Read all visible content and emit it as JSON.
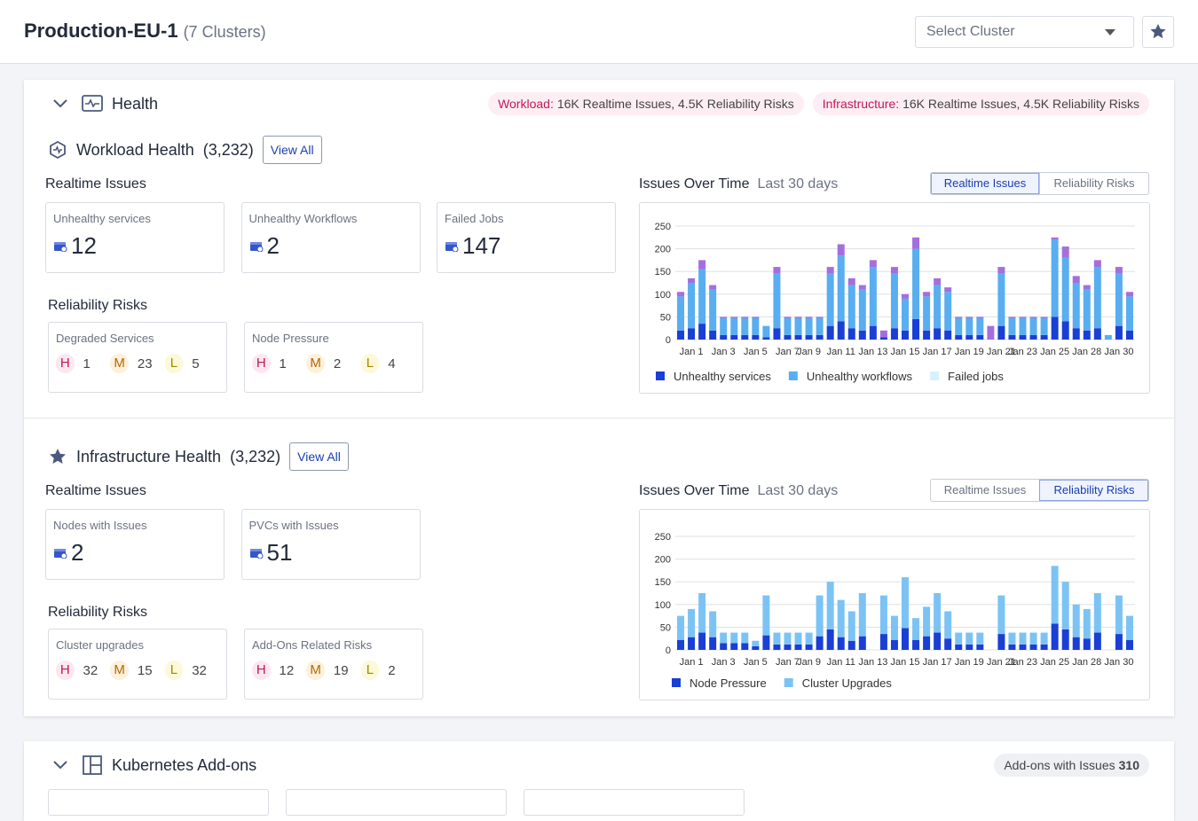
{
  "header": {
    "title": "Production-EU-1",
    "subtitle": "(7 Clusters)",
    "select_placeholder": "Select Cluster"
  },
  "health": {
    "title": "Health",
    "risk_levels": [
      "H",
      "M",
      "L"
    ],
    "badges": [
      {
        "label": "Workload:",
        "text": "16K Realtime Issues, 4.5K Reliability Risks"
      },
      {
        "label": "Infrastructure:",
        "text": "16K Realtime Issues, 4.5K Reliability Risks"
      }
    ],
    "workload": {
      "title": "Workload Health",
      "count": "(3,232)",
      "view_all": "View All",
      "realtime_title": "Realtime Issues",
      "realtime": [
        {
          "label": "Unhealthy services",
          "value": 12
        },
        {
          "label": "Unhealthy Workflows",
          "value": 2
        },
        {
          "label": "Failed Jobs",
          "value": 147
        }
      ],
      "reliability_title": "Reliability Risks",
      "risks": [
        {
          "label": "Degraded Services",
          "values": [
            1,
            23,
            5
          ]
        },
        {
          "label": "Node Pressure",
          "values": [
            1,
            2,
            4
          ]
        }
      ],
      "toggles": [
        "Realtime Issues",
        "Reliability Risks"
      ],
      "active_toggle": 0
    },
    "infrastructure": {
      "title": "Infrastructure Health",
      "count": "(3,232)",
      "view_all": "View All",
      "realtime_title": "Realtime Issues",
      "realtime": [
        {
          "label": "Nodes with Issues",
          "value": 2
        },
        {
          "label": "PVCs with Issues",
          "value": 51
        }
      ],
      "reliability_title": "Reliability Risks",
      "risks": [
        {
          "label": "Cluster upgrades",
          "values": [
            32,
            15,
            32
          ]
        },
        {
          "label": "Add-Ons Related Risks",
          "values": [
            12,
            19,
            2
          ]
        }
      ],
      "toggles": [
        "Realtime Issues",
        "Reliability Risks"
      ],
      "active_toggle": 1
    }
  },
  "addons": {
    "title": "Kubernetes Add-ons",
    "badge_label": "Add-ons with Issues",
    "badge_value": 310
  },
  "chart_data": [
    {
      "type": "bar",
      "stacked": true,
      "title": "Issues Over Time",
      "subtitle": "Last 30 days",
      "ylim": [
        0,
        250
      ],
      "yticks": [
        0,
        50,
        100,
        150,
        200,
        250
      ],
      "grid": true,
      "categories": [
        null,
        "Jan 1",
        null,
        null,
        "Jan 3",
        null,
        null,
        "Jan 5",
        null,
        null,
        "Jan 7",
        null,
        "Jan 9",
        null,
        null,
        "Jan 11",
        null,
        null,
        "Jan 13",
        null,
        null,
        "Jan 15",
        null,
        null,
        "Jan 17",
        null,
        null,
        "Jan 19",
        null,
        null,
        "Jan 21",
        null,
        "Jan 23",
        null,
        null,
        "Jan 25",
        null,
        null,
        "Jan 28",
        null,
        null,
        "Jan 30",
        null
      ],
      "series": [
        {
          "name": "Unhealthy services",
          "color": "#1a3fd6",
          "values": [
            20,
            25,
            35,
            20,
            10,
            10,
            10,
            10,
            5,
            25,
            10,
            10,
            10,
            10,
            30,
            40,
            25,
            20,
            30,
            5,
            25,
            20,
            45,
            20,
            25,
            20,
            10,
            10,
            10,
            0,
            30,
            10,
            10,
            10,
            10,
            50,
            40,
            25,
            20,
            25,
            0,
            30,
            20
          ]
        },
        {
          "name": "Unhealthy workflows",
          "color": "#58aef0",
          "values": [
            75,
            100,
            120,
            90,
            37,
            37,
            37,
            37,
            25,
            120,
            37,
            37,
            37,
            37,
            115,
            145,
            95,
            90,
            130,
            0,
            120,
            70,
            155,
            75,
            95,
            85,
            37,
            37,
            37,
            0,
            115,
            37,
            37,
            37,
            37,
            170,
            140,
            100,
            90,
            135,
            10,
            115,
            75
          ]
        },
        {
          "name": "Failed jobs",
          "color": "#a46ee0",
          "legend_color": "#d7f1fb",
          "values": [
            10,
            10,
            20,
            10,
            3,
            3,
            3,
            3,
            0,
            15,
            3,
            3,
            3,
            3,
            15,
            25,
            15,
            10,
            15,
            15,
            15,
            10,
            25,
            10,
            15,
            10,
            3,
            3,
            3,
            30,
            15,
            3,
            3,
            3,
            3,
            5,
            25,
            15,
            10,
            15,
            0,
            15,
            10
          ]
        }
      ]
    },
    {
      "type": "bar",
      "stacked": true,
      "title": "Issues Over Time",
      "subtitle": "Last 30 days",
      "ylim": [
        0,
        250
      ],
      "yticks": [
        0,
        50,
        100,
        150,
        200,
        250
      ],
      "grid": true,
      "categories": [
        null,
        "Jan 1",
        null,
        null,
        "Jan 3",
        null,
        null,
        "Jan 5",
        null,
        null,
        "Jan 7",
        null,
        "Jan 9",
        null,
        null,
        "Jan 11",
        null,
        null,
        "Jan 13",
        null,
        null,
        "Jan 15",
        null,
        null,
        "Jan 17",
        null,
        null,
        "Jan 19",
        null,
        null,
        "Jan 21",
        null,
        "Jan 23",
        null,
        null,
        "Jan 25",
        null,
        null,
        "Jan 28",
        null,
        null,
        "Jan 30",
        null
      ],
      "series": [
        {
          "name": "Node Pressure",
          "color": "#1a3fd6",
          "values": [
            22,
            28,
            38,
            28,
            15,
            15,
            15,
            8,
            32,
            12,
            12,
            12,
            12,
            30,
            45,
            28,
            20,
            30,
            0,
            35,
            22,
            48,
            22,
            30,
            38,
            25,
            12,
            12,
            12,
            0,
            35,
            12,
            12,
            12,
            12,
            58,
            45,
            28,
            25,
            38,
            0,
            35,
            22
          ]
        },
        {
          "name": "Cluster Upgrades",
          "color": "#7cc3f5",
          "values": [
            53,
            62,
            87,
            57,
            23,
            23,
            23,
            12,
            88,
            26,
            26,
            26,
            26,
            90,
            105,
            82,
            65,
            95,
            0,
            85,
            53,
            112,
            48,
            65,
            87,
            60,
            26,
            26,
            26,
            0,
            85,
            26,
            26,
            26,
            26,
            127,
            105,
            72,
            65,
            87,
            0,
            85,
            53
          ]
        }
      ]
    }
  ]
}
